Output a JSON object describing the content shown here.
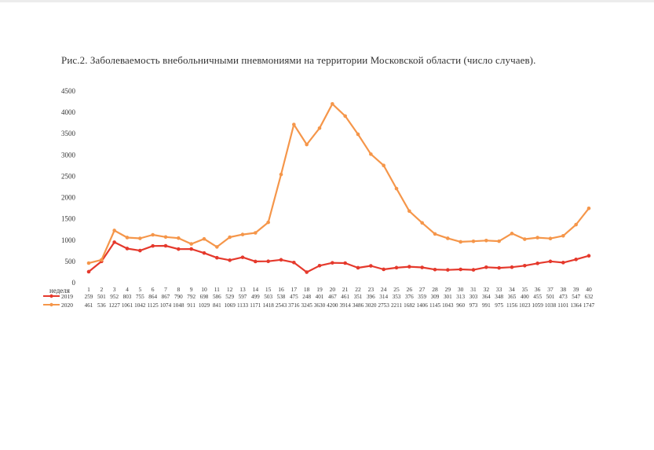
{
  "caption": "Рис.2. Заболеваемость внебольничными пневмониями на территории Московской области (число случаев).",
  "chart_data": {
    "type": "line",
    "title": "",
    "xlabel": "неделя",
    "ylabel": "",
    "ylim": [
      0,
      4500
    ],
    "yticks": [
      0,
      500,
      1000,
      1500,
      2000,
      2500,
      3000,
      3500,
      4000,
      4500
    ],
    "grid": false,
    "legend": "table-below",
    "categories": [
      "1",
      "2",
      "3",
      "4",
      "5",
      "6",
      "7",
      "8",
      "9",
      "10",
      "11",
      "12",
      "13",
      "14",
      "15",
      "16",
      "17",
      "18",
      "19",
      "20",
      "21",
      "22",
      "23",
      "24",
      "25",
      "26",
      "27",
      "28",
      "29",
      "30",
      "31",
      "32",
      "33",
      "34",
      "35",
      "36",
      "37",
      "38",
      "39",
      "40"
    ],
    "series": [
      {
        "name": "2019",
        "color": "#e5392c",
        "values": [
          259,
          501,
          952,
          803,
          755,
          864,
          867,
          790,
          792,
          698,
          586,
          529,
          597,
          499,
          503,
          538,
          475,
          248,
          401,
          467,
          461,
          351,
          396,
          314,
          353,
          376,
          359,
          309,
          301,
          313,
          303,
          364,
          348,
          365,
          400,
          455,
          501,
          473,
          547,
          632
        ]
      },
      {
        "name": "2020",
        "color": "#f5964a",
        "values": [
          461,
          536,
          1227,
          1061,
          1042,
          1125,
          1074,
          1048,
          911,
          1029,
          841,
          1069,
          1133,
          1171,
          1418,
          2543,
          3716,
          3245,
          3630,
          4200,
          3914,
          3486,
          3020,
          2753,
          2211,
          1682,
          1406,
          1145,
          1043,
          960,
          973,
          991,
          975,
          1156,
          1023,
          1059,
          1038,
          1101,
          1364,
          1747
        ]
      }
    ],
    "table_rows": [
      {
        "name": "2019",
        "cells": [
          "259",
          "501",
          "952",
          "803",
          "755",
          "864",
          "867",
          "790",
          "792",
          "698",
          "586",
          "529",
          "597",
          "499",
          "503",
          "538",
          "475",
          "248",
          "401",
          "467",
          "461",
          "351",
          "396",
          "314",
          "353",
          "376",
          "359",
          "309",
          "301",
          "313",
          "303",
          "364",
          "348",
          "365",
          "400",
          "455",
          "501",
          "473",
          "547",
          "632"
        ]
      },
      {
        "name": "2020",
        "cells": [
          "461",
          "536",
          "1227",
          "1061",
          "1042",
          "1125",
          "1074",
          "1048",
          "911",
          "1029",
          "841",
          "1069",
          "1133",
          "1171",
          "1418",
          "2543",
          "3716",
          "3245",
          "3630",
          "4200",
          "3914",
          "3486",
          "3020",
          "2753",
          "2211",
          "1682",
          "1406",
          "1145",
          "1043",
          "960",
          "973",
          "991",
          "975",
          "1156",
          "1023",
          "1059",
          "1038",
          "1101",
          "1364",
          "1747"
        ]
      }
    ]
  }
}
